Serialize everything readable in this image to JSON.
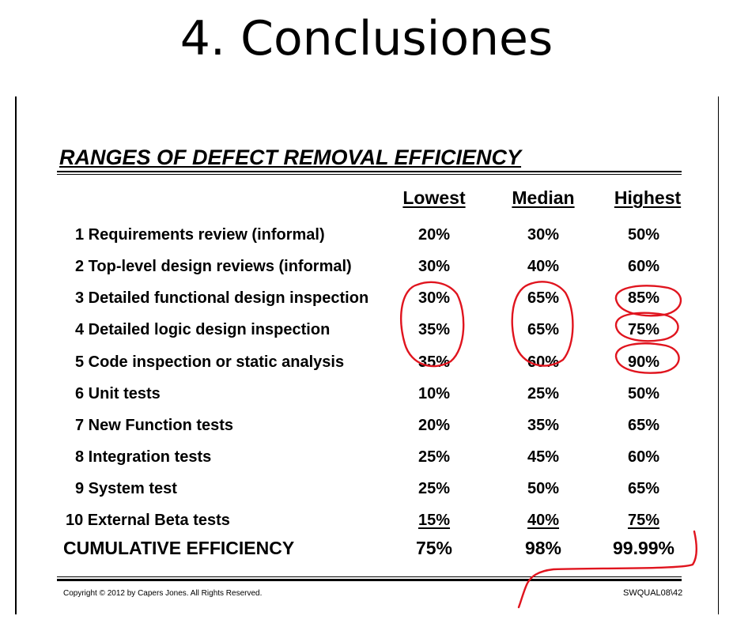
{
  "slide": {
    "title": "4. Conclusiones"
  },
  "table": {
    "heading": "RANGES OF DEFECT REMOVAL EFFICIENCY",
    "columns": [
      "Lowest",
      "Median",
      "Highest"
    ],
    "rows": [
      {
        "label": "1 Requirements review (informal)",
        "lowest": "20%",
        "median": "30%",
        "highest": "50%"
      },
      {
        "label": "2 Top-level design reviews (informal)",
        "lowest": "30%",
        "median": "40%",
        "highest": "60%"
      },
      {
        "label": "3 Detailed functional design inspection",
        "lowest": "30%",
        "median": "65%",
        "highest": "85%"
      },
      {
        "label": "4 Detailed logic design inspection",
        "lowest": "35%",
        "median": "65%",
        "highest": "75%"
      },
      {
        "label": "5 Code inspection or static analysis",
        "lowest": "35%",
        "median": "60%",
        "highest": "90%"
      },
      {
        "label": "6 Unit tests",
        "lowest": "10%",
        "median": "25%",
        "highest": "50%"
      },
      {
        "label": "7 New Function tests",
        "lowest": "20%",
        "median": "35%",
        "highest": "65%"
      },
      {
        "label": "8 Integration tests",
        "lowest": "25%",
        "median": "45%",
        "highest": "60%"
      },
      {
        "label": "9 System test",
        "lowest": "25%",
        "median": "50%",
        "highest": "65%"
      },
      {
        "label": "10 External Beta tests",
        "lowest": "15%",
        "median": "40%",
        "highest": "75%"
      }
    ],
    "total": {
      "label": "CUMULATIVE EFFICIENCY",
      "lowest": "75%",
      "median": "98%",
      "highest": "99.99%"
    }
  },
  "footer": {
    "copyright": "Copyright © 2012 by Capers Jones.  All Rights Reserved.",
    "slide_code": "SWQUAL08\\42"
  },
  "annotations": {
    "ink_color": "#e0141e"
  }
}
